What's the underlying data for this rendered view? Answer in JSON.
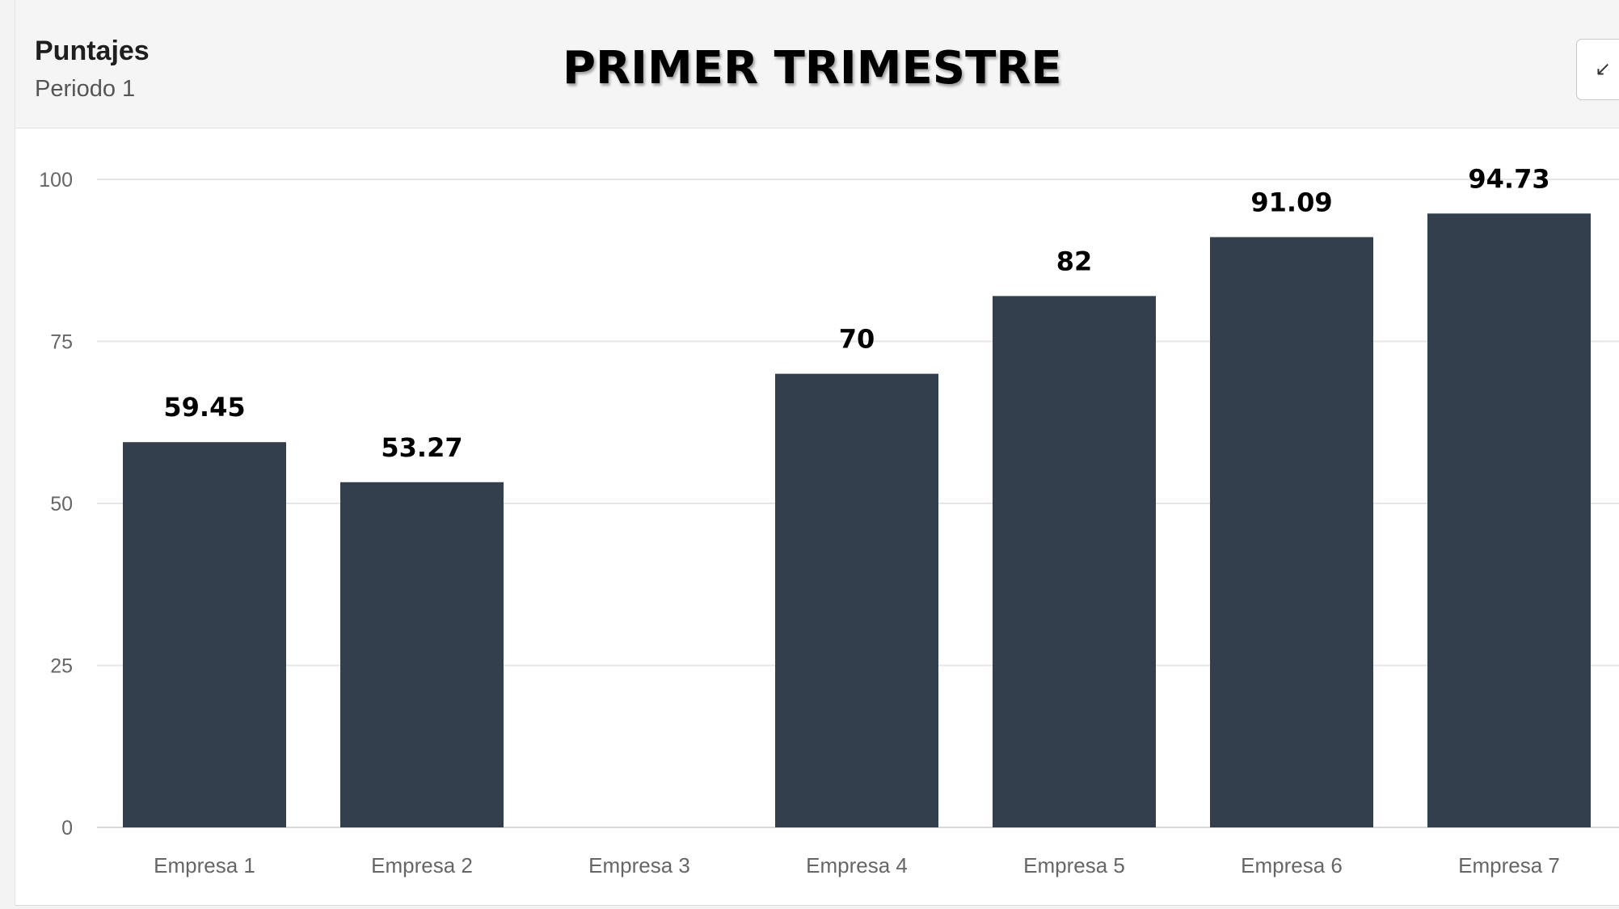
{
  "header": {
    "title": "Puntajes",
    "subtitle": "Periodo 1",
    "collapse_icon": "collapse-arrow-icon"
  },
  "overlay_title": "PRIMER TRIMESTRE",
  "chart_data": {
    "type": "bar",
    "categories": [
      "Empresa 1",
      "Empresa 2",
      "Empresa 3",
      "Empresa 4",
      "Empresa 5",
      "Empresa 6",
      "Empresa 7"
    ],
    "values": [
      59.45,
      53.27,
      null,
      70,
      82,
      91.09,
      94.73
    ],
    "data_labels": [
      "59.45",
      "53.27",
      "",
      "70",
      "82",
      "91.09",
      "94.73"
    ],
    "ylim": [
      0,
      100
    ],
    "yticks": [
      0,
      25,
      50,
      75,
      100
    ],
    "grid": true,
    "legend": "none",
    "bar_color": "#333f4d",
    "grid_color": "#e6e6e6"
  }
}
